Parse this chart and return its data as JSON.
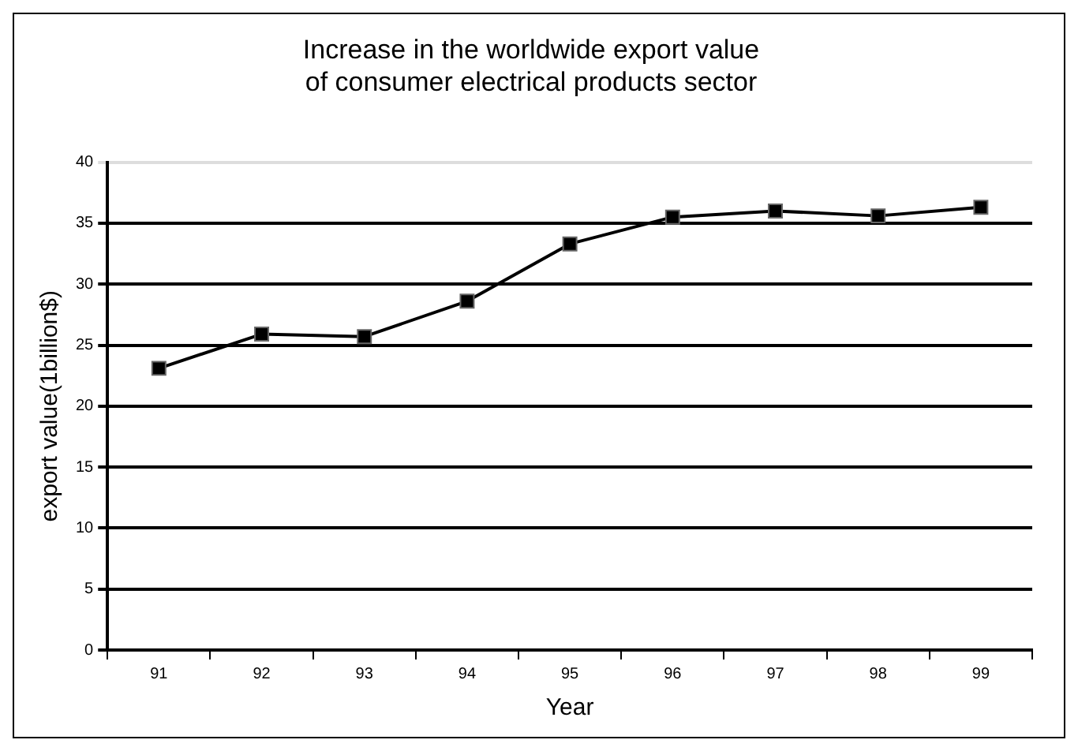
{
  "chart_data": {
    "type": "line",
    "title": "Increase in the worldwide export value\nof consumer electrical products sector",
    "xlabel": "Year",
    "ylabel": "export value(1billion$)",
    "categories": [
      "91",
      "92",
      "93",
      "94",
      "95",
      "96",
      "97",
      "98",
      "99"
    ],
    "series": [
      {
        "color": "#000000",
        "values": [
          23.1,
          25.9,
          25.7,
          28.6,
          33.3,
          35.5,
          36.0,
          35.6,
          36.3
        ]
      }
    ],
    "ylim": [
      0,
      40
    ],
    "yticks": [
      0,
      5,
      10,
      15,
      20,
      25,
      30,
      35,
      40
    ],
    "grid": "y",
    "legend": false,
    "marker": "square",
    "line_style": "solid"
  }
}
